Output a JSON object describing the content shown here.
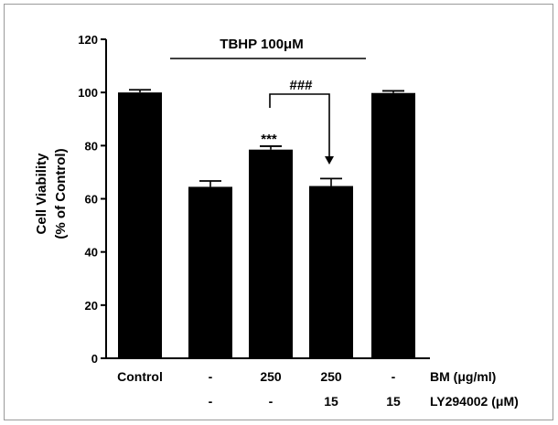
{
  "chart_data": {
    "type": "bar",
    "ylabel_line1": "Cell Viability",
    "ylabel_line2": "(% of Control)",
    "ylim": [
      0,
      120
    ],
    "yticks": [
      "0",
      "20",
      "40",
      "60",
      "80",
      "100",
      "120"
    ],
    "grid": false,
    "bar_color": "#000000",
    "values": [
      100,
      64.5,
      78.5,
      64.8,
      99.8
    ],
    "errors": [
      1.0,
      2.2,
      1.3,
      2.8,
      0.8
    ],
    "row1": {
      "label": "BM (μg/ml)",
      "values": [
        "Control",
        "-",
        "250",
        "250",
        "-"
      ]
    },
    "row2": {
      "label": "LY294002 (μM)",
      "values": [
        "",
        "-",
        "-",
        "15",
        "15"
      ]
    },
    "treatment_label": "TBHP 100μM",
    "significance": {
      "stars": "***",
      "hash": "###"
    }
  }
}
